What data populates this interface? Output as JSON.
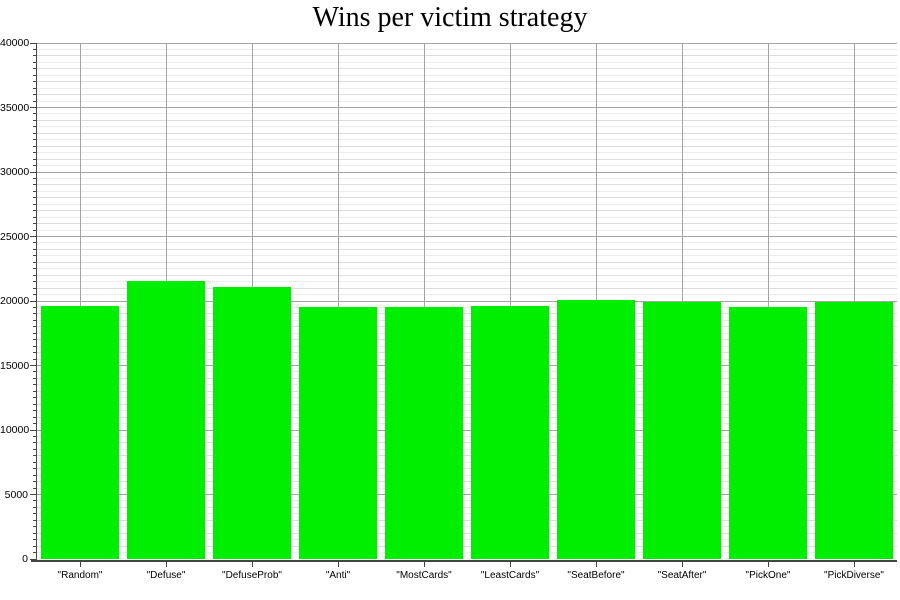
{
  "chart_data": {
    "type": "bar",
    "title": "Wins per victim strategy",
    "categories": [
      "\"Random\"",
      "\"Defuse\"",
      "\"DefuseProb\"",
      "\"Anti\"",
      "\"MostCards\"",
      "\"LeastCards\"",
      "\"SeatBefore\"",
      "\"SeatAfter\"",
      "\"PickOne\"",
      "\"PickDiverse\""
    ],
    "values": [
      19600,
      21550,
      21100,
      19550,
      19550,
      19650,
      20050,
      19900,
      19500,
      19900
    ],
    "xlabel": "",
    "ylabel": "",
    "ylim": [
      0,
      40000
    ],
    "y_major_ticks": [
      0,
      5000,
      10000,
      15000,
      20000,
      25000,
      30000,
      35000,
      40000
    ],
    "y_minor_step": 500,
    "grid": "horizontal major + minor lines; vertical gridline at each category center",
    "legend_position": "none",
    "colors": {
      "bar_fill": "#00ee00",
      "major_grid": "#a4a4a4",
      "mid_grid": "#dedede",
      "minor_grid": "#ececec",
      "axis": "#444444",
      "background": "#ffffff"
    }
  }
}
